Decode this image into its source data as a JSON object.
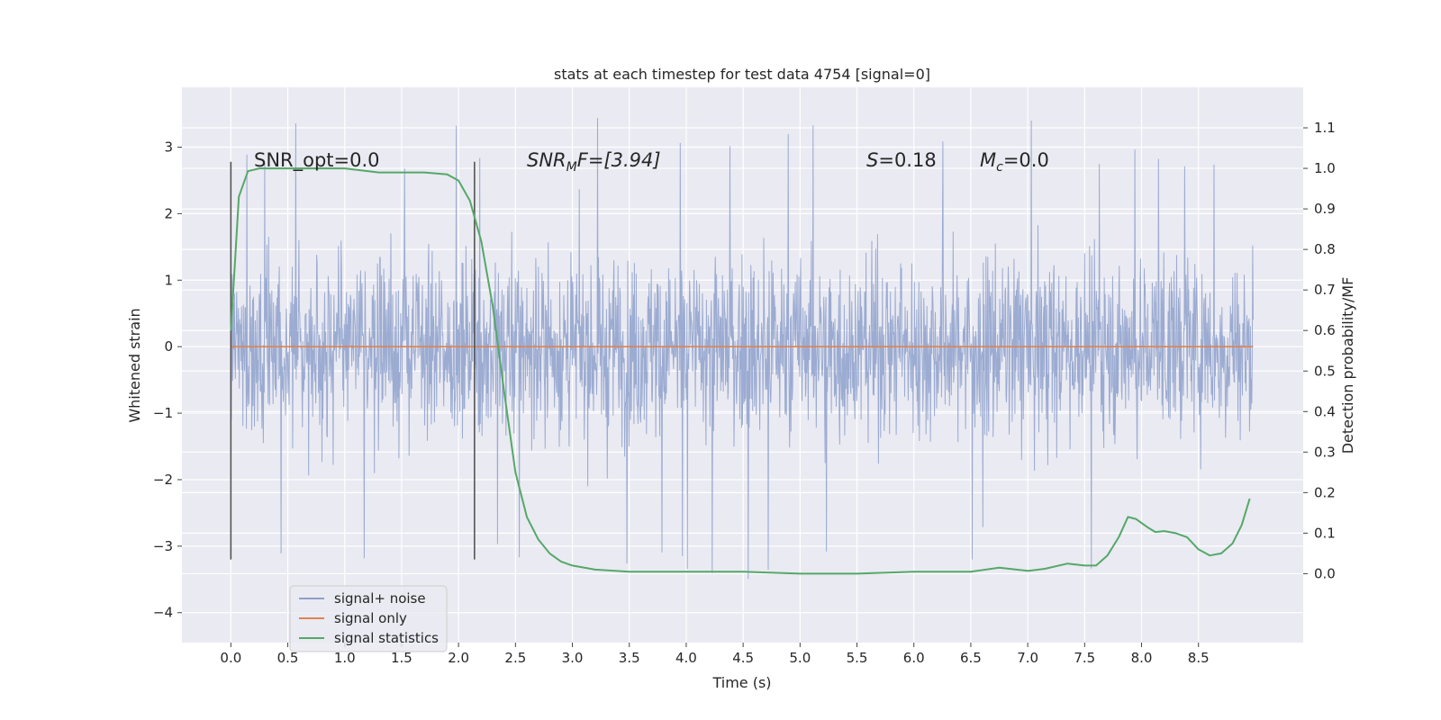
{
  "chart_data": {
    "type": "line",
    "title": "stats at each timestep for test data 4754 [signal=0]",
    "xlabel": "Time (s)",
    "ylabel": "Whitened strain",
    "y2label": "Detection probability/MF",
    "xlim": [
      -0.43,
      9.42
    ],
    "ylim": [
      -4.45,
      3.9
    ],
    "y2lim": [
      -0.17,
      1.2
    ],
    "x_ticks": [
      "0.0",
      "0.5",
      "1.0",
      "1.5",
      "2.0",
      "2.5",
      "3.0",
      "3.5",
      "4.0",
      "4.5",
      "5.0",
      "5.5",
      "6.0",
      "6.5",
      "7.0",
      "7.5",
      "8.0",
      "8.5"
    ],
    "y_ticks": [
      "3",
      "2",
      "1",
      "0",
      "−1",
      "−2",
      "−3",
      "−4"
    ],
    "y2_ticks": [
      "1.1",
      "1.0",
      "0.9",
      "0.8",
      "0.7",
      "0.6",
      "0.5",
      "0.4",
      "0.3",
      "0.2",
      "0.1",
      "0.0"
    ],
    "grid": true,
    "legend_position": "lower-left",
    "annotations": {
      "snr_opt": "SNR_opt=0.0",
      "snr_mf_main": "SNR",
      "snr_mf_sub": "M",
      "snr_mf_rest": "F=[3.94]",
      "s_main": "S",
      "s_rest": "=0.18",
      "mc_main": "M",
      "mc_sub": "c",
      "mc_rest": "=0.0"
    },
    "vertical_lines_x": [
      0.0,
      2.14
    ],
    "vertical_lines_y": [
      -3.2,
      2.78
    ],
    "series": [
      {
        "name": "signal+ noise",
        "color": "#8da0cb",
        "x_range": [
          0.0,
          8.98
        ],
        "envelope": {
          "dense_band": [
            -1.4,
            1.6
          ],
          "typical_peaks": [
            -2.6,
            2.6
          ],
          "max": 3.6,
          "min": -4.05
        }
      },
      {
        "name": "signal only",
        "color": "#dd8452",
        "x": [
          0.0,
          8.98
        ],
        "y": [
          0.0,
          0.0
        ]
      },
      {
        "name": "signal statistics",
        "color": "#55a868",
        "axis": "right",
        "x": [
          0.0,
          0.07,
          0.15,
          0.25,
          0.5,
          1.0,
          1.3,
          1.5,
          1.7,
          1.9,
          2.0,
          2.1,
          2.2,
          2.3,
          2.4,
          2.5,
          2.6,
          2.7,
          2.8,
          2.9,
          3.0,
          3.2,
          3.5,
          4.0,
          4.5,
          5.0,
          5.5,
          6.0,
          6.5,
          6.75,
          7.0,
          7.15,
          7.35,
          7.5,
          7.6,
          7.7,
          7.8,
          7.88,
          7.95,
          8.05,
          8.12,
          8.2,
          8.3,
          8.4,
          8.5,
          8.6,
          8.7,
          8.8,
          8.88,
          8.95
        ],
        "y": [
          0.6,
          0.93,
          0.993,
          1.0,
          1.0,
          1.0,
          0.99,
          0.99,
          0.99,
          0.985,
          0.97,
          0.92,
          0.82,
          0.66,
          0.45,
          0.25,
          0.14,
          0.085,
          0.05,
          0.03,
          0.02,
          0.01,
          0.005,
          0.005,
          0.005,
          0.0,
          0.0,
          0.005,
          0.005,
          0.015,
          0.007,
          0.012,
          0.025,
          0.02,
          0.02,
          0.045,
          0.09,
          0.14,
          0.135,
          0.115,
          0.103,
          0.105,
          0.1,
          0.09,
          0.06,
          0.045,
          0.05,
          0.075,
          0.12,
          0.185
        ]
      }
    ]
  }
}
